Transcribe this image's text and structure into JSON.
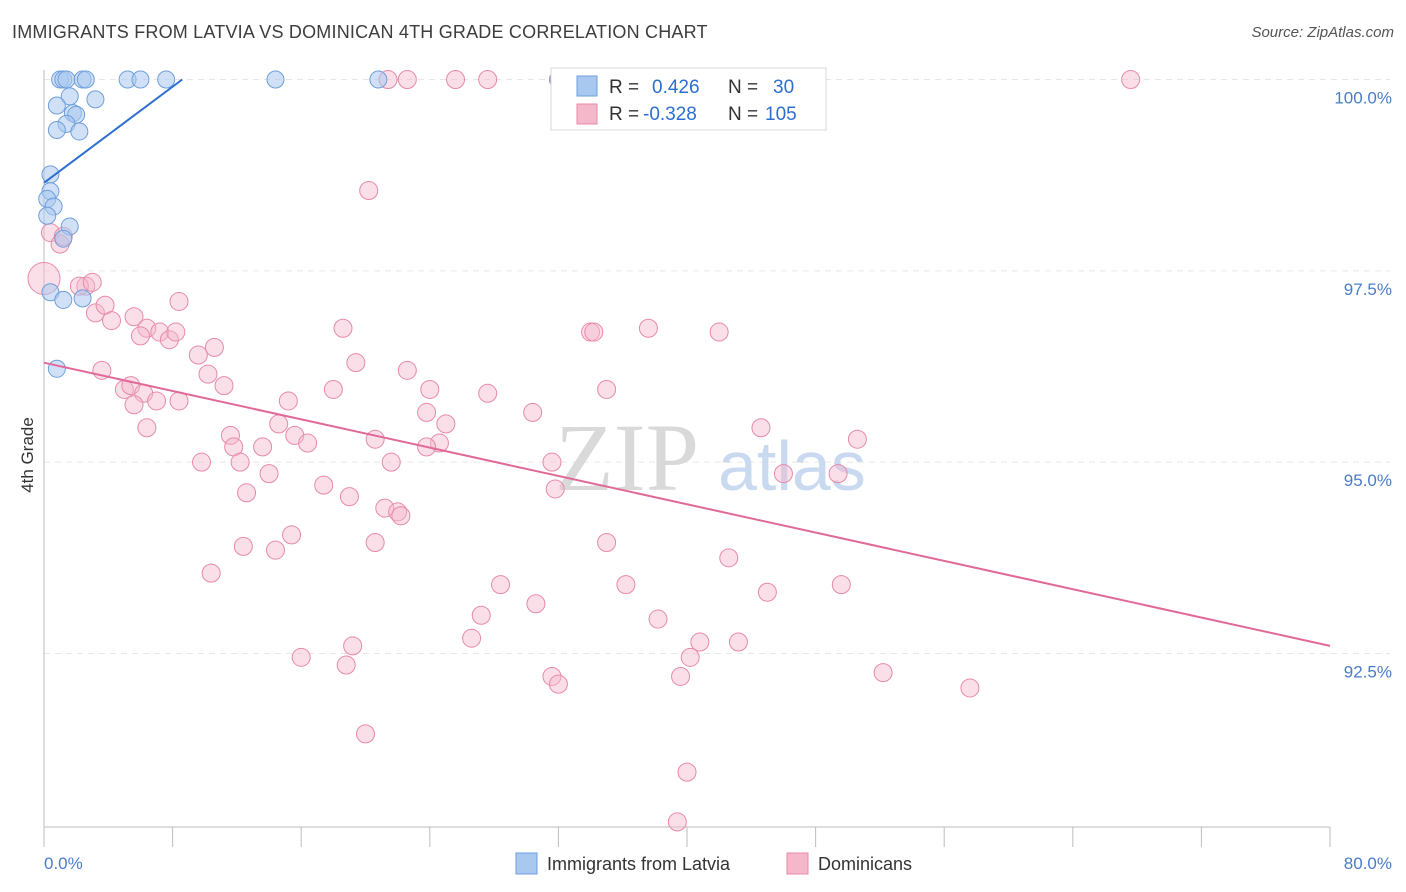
{
  "header": {
    "title": "IMMIGRANTS FROM LATVIA VS DOMINICAN 4TH GRADE CORRELATION CHART",
    "source": "Source: ZipAtlas.com"
  },
  "watermark": {
    "zip": "ZIP",
    "atlas": "atlas"
  },
  "legend": {
    "r_label": "R =",
    "n_label": "N =",
    "rows": [
      {
        "r": "0.426",
        "n": "30",
        "color": "#a9c8f0"
      },
      {
        "r": "-0.328",
        "n": "105",
        "color": "#f5b8cb"
      }
    ]
  },
  "colors": {
    "blue_fill": "#a9c8f0",
    "blue_stroke": "#6f9fdc",
    "blue_line": "#2c6fcf",
    "pink_fill": "#f5b8cb",
    "pink_stroke": "#e88aa8",
    "pink_line": "#e0699a",
    "grid": "#e6e6e6",
    "value_text": "#2c6fcf"
  },
  "chart_data": {
    "type": "scatter",
    "title": "IMMIGRANTS FROM LATVIA VS DOMINICAN 4TH GRADE CORRELATION CHART",
    "xlabel": "",
    "ylabel": "4th Grade",
    "xlim": [
      0,
      80
    ],
    "ylim": [
      90.0,
      100.2
    ],
    "x_tick_labels": [
      "0.0%",
      "80.0%"
    ],
    "y_ticks": [
      92.5,
      95.0,
      97.5,
      100.0
    ],
    "y_tick_labels": [
      "92.5%",
      "95.0%",
      "97.5%",
      "100.0%"
    ],
    "grid": true,
    "legend_position": "top-center",
    "series": [
      {
        "name": "Immigrants from Latvia",
        "color": "#a9c8f0",
        "trend": {
          "x": [
            0.0,
            8.6
          ],
          "y": [
            98.65,
            100.0
          ]
        },
        "points": [
          [
            1.0,
            100.0
          ],
          [
            1.2,
            100.0
          ],
          [
            1.4,
            100.0
          ],
          [
            2.4,
            100.0
          ],
          [
            2.6,
            100.0
          ],
          [
            5.2,
            100.0
          ],
          [
            6.0,
            100.0
          ],
          [
            7.6,
            100.0
          ],
          [
            14.4,
            100.0
          ],
          [
            1.6,
            99.78
          ],
          [
            3.2,
            99.74
          ],
          [
            0.8,
            99.66
          ],
          [
            1.8,
            99.56
          ],
          [
            2.0,
            99.54
          ],
          [
            1.4,
            99.42
          ],
          [
            0.8,
            99.34
          ],
          [
            2.2,
            99.32
          ],
          [
            0.4,
            98.76
          ],
          [
            0.4,
            98.54
          ],
          [
            0.2,
            98.44
          ],
          [
            0.6,
            98.34
          ],
          [
            0.2,
            98.22
          ],
          [
            1.6,
            98.08
          ],
          [
            1.2,
            97.92
          ],
          [
            0.4,
            97.22
          ],
          [
            1.2,
            97.12
          ],
          [
            2.4,
            97.14
          ],
          [
            0.8,
            96.22
          ],
          [
            20.8,
            100.0
          ],
          [
            32.0,
            100.0
          ]
        ]
      },
      {
        "name": "Dominicans",
        "color": "#f5b8cb",
        "trend": {
          "x": [
            0.0,
            80.0
          ],
          "y": [
            96.3,
            92.6
          ]
        },
        "points": [
          [
            0.0,
            97.4
          ],
          [
            0.4,
            98.0
          ],
          [
            1.0,
            97.85
          ],
          [
            1.2,
            97.95
          ],
          [
            2.6,
            97.3
          ],
          [
            2.2,
            97.3
          ],
          [
            3.0,
            97.35
          ],
          [
            3.2,
            96.95
          ],
          [
            3.8,
            97.05
          ],
          [
            4.2,
            96.85
          ],
          [
            5.6,
            96.9
          ],
          [
            6.4,
            96.75
          ],
          [
            7.2,
            96.7
          ],
          [
            6.0,
            96.65
          ],
          [
            7.8,
            96.6
          ],
          [
            8.2,
            96.7
          ],
          [
            8.4,
            97.1
          ],
          [
            10.6,
            96.5
          ],
          [
            9.6,
            96.4
          ],
          [
            10.2,
            96.15
          ],
          [
            11.2,
            96.0
          ],
          [
            3.6,
            96.2
          ],
          [
            5.0,
            95.95
          ],
          [
            5.4,
            96.0
          ],
          [
            6.2,
            95.9
          ],
          [
            5.6,
            95.75
          ],
          [
            7.0,
            95.8
          ],
          [
            6.4,
            95.45
          ],
          [
            8.4,
            95.8
          ],
          [
            11.6,
            95.35
          ],
          [
            11.8,
            95.2
          ],
          [
            13.6,
            95.2
          ],
          [
            14.6,
            95.5
          ],
          [
            15.2,
            95.8
          ],
          [
            15.6,
            95.35
          ],
          [
            16.4,
            95.25
          ],
          [
            18.0,
            95.95
          ],
          [
            18.6,
            96.75
          ],
          [
            19.4,
            96.3
          ],
          [
            20.6,
            95.3
          ],
          [
            21.6,
            95.0
          ],
          [
            22.6,
            96.2
          ],
          [
            23.8,
            95.65
          ],
          [
            24.0,
            95.95
          ],
          [
            24.6,
            95.25
          ],
          [
            25.0,
            95.5
          ],
          [
            9.8,
            95.0
          ],
          [
            12.2,
            95.0
          ],
          [
            14.0,
            94.85
          ],
          [
            12.6,
            94.6
          ],
          [
            17.4,
            94.7
          ],
          [
            19.0,
            94.55
          ],
          [
            21.2,
            94.4
          ],
          [
            22.0,
            94.35
          ],
          [
            22.2,
            94.3
          ],
          [
            12.4,
            93.9
          ],
          [
            14.4,
            93.85
          ],
          [
            15.4,
            94.05
          ],
          [
            20.6,
            93.95
          ],
          [
            10.4,
            93.55
          ],
          [
            20.2,
            98.55
          ],
          [
            21.4,
            100.0
          ],
          [
            22.6,
            100.0
          ],
          [
            25.6,
            100.0
          ],
          [
            27.6,
            100.0
          ],
          [
            32.0,
            100.0
          ],
          [
            67.6,
            100.0
          ],
          [
            23.8,
            95.2
          ],
          [
            27.6,
            95.9
          ],
          [
            30.4,
            95.65
          ],
          [
            31.6,
            95.0
          ],
          [
            31.8,
            94.65
          ],
          [
            34.0,
            96.7
          ],
          [
            34.2,
            96.7
          ],
          [
            35.0,
            95.95
          ],
          [
            37.6,
            96.75
          ],
          [
            44.6,
            95.45
          ],
          [
            46.0,
            94.85
          ],
          [
            49.4,
            94.85
          ],
          [
            50.6,
            95.3
          ],
          [
            28.4,
            93.4
          ],
          [
            27.2,
            93.0
          ],
          [
            30.6,
            93.15
          ],
          [
            31.6,
            92.2
          ],
          [
            32.0,
            92.1
          ],
          [
            35.0,
            93.95
          ],
          [
            36.2,
            93.4
          ],
          [
            38.2,
            92.95
          ],
          [
            40.2,
            92.45
          ],
          [
            39.6,
            92.2
          ],
          [
            40.8,
            92.65
          ],
          [
            43.2,
            92.65
          ],
          [
            42.6,
            93.75
          ],
          [
            45.0,
            93.3
          ],
          [
            49.6,
            93.4
          ],
          [
            52.2,
            92.25
          ],
          [
            57.6,
            92.05
          ],
          [
            16.0,
            92.45
          ],
          [
            19.2,
            92.6
          ],
          [
            18.8,
            92.35
          ],
          [
            20.0,
            91.45
          ],
          [
            26.6,
            92.7
          ],
          [
            40.0,
            90.95
          ],
          [
            39.4,
            90.3
          ],
          [
            42.0,
            96.7
          ]
        ]
      }
    ]
  },
  "bottom_legend": [
    {
      "label": "Immigrants from Latvia",
      "color": "#a9c8f0"
    },
    {
      "label": "Dominicans",
      "color": "#f5b8cb"
    }
  ]
}
